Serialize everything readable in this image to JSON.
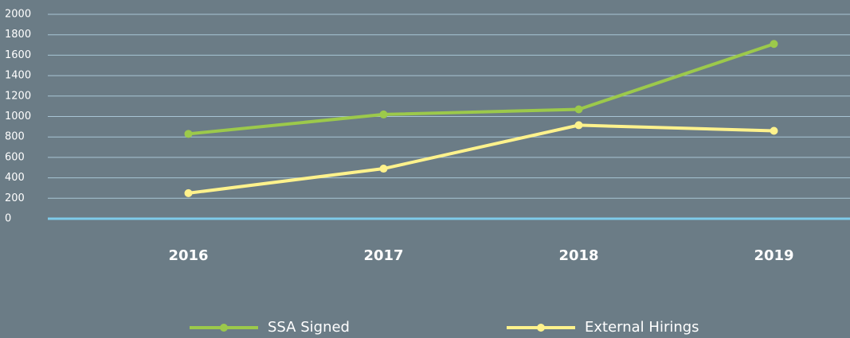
{
  "chart_data": {
    "type": "line",
    "categories": [
      "2016",
      "2017",
      "2018",
      "2019"
    ],
    "series": [
      {
        "name": "SSA Signed",
        "color": "#9cc94b",
        "values": [
          830,
          1020,
          1070,
          1710
        ]
      },
      {
        "name": "External Hirings",
        "color": "#fff28c",
        "values": [
          250,
          490,
          915,
          860
        ]
      }
    ],
    "ylim": [
      0,
      2000
    ],
    "yticks": [
      0,
      200,
      400,
      600,
      800,
      1000,
      1200,
      1400,
      1600,
      1800,
      2000
    ],
    "grid": true,
    "legend": "bottom"
  }
}
